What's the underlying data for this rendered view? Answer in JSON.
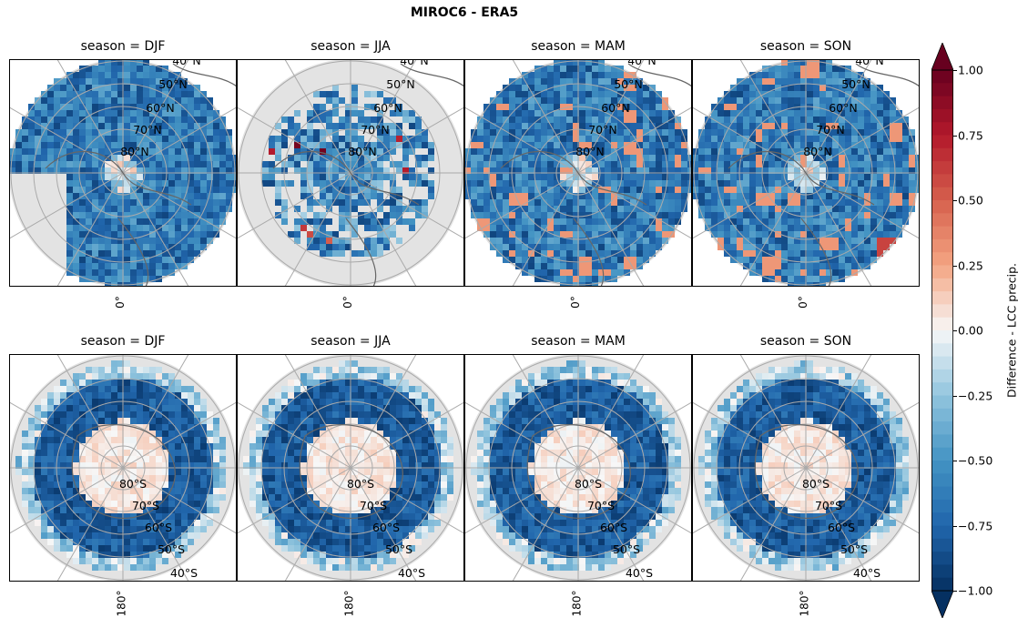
{
  "title": "MIROC6 - ERA5",
  "panels": [
    {
      "title": "season = DJF",
      "hemisphere": "north",
      "pattern": "djf_n"
    },
    {
      "title": "season = JJA",
      "hemisphere": "north",
      "pattern": "jja_n"
    },
    {
      "title": "season = MAM",
      "hemisphere": "north",
      "pattern": "mam_n"
    },
    {
      "title": "season = SON",
      "hemisphere": "north",
      "pattern": "son_n"
    },
    {
      "title": "season = DJF",
      "hemisphere": "south",
      "pattern": "djf_s"
    },
    {
      "title": "season = JJA",
      "hemisphere": "south",
      "pattern": "jja_s"
    },
    {
      "title": "season = MAM",
      "hemisphere": "south",
      "pattern": "mam_s"
    },
    {
      "title": "season = SON",
      "hemisphere": "south",
      "pattern": "son_s"
    }
  ],
  "north_lat_labels": [
    "40°N",
    "50°N",
    "60°N",
    "70°N",
    "80°N"
  ],
  "south_lat_labels": [
    "80°S",
    "70°S",
    "60°S",
    "50°S",
    "40°S"
  ],
  "north_lon_label": "0°",
  "south_lon_label": "180°",
  "colorbar": {
    "label": "Difference - LCC precip.",
    "min": -1.0,
    "max": 1.0,
    "levels": 40,
    "ticks": [
      "1.00",
      "0.75",
      "0.50",
      "0.25",
      "0.00",
      "−0.25",
      "−0.50",
      "−0.75",
      "−1.00"
    ],
    "tick_values": [
      1.0,
      0.75,
      0.5,
      0.25,
      0.0,
      -0.25,
      -0.5,
      -0.75,
      -1.0
    ]
  },
  "colors": {
    "grid": "#aaaaaa",
    "coast": "#666666",
    "nodata": "#e3e3e3",
    "neg": "#053061",
    "pos": "#67001f",
    "mid": "#f7f7f7"
  }
}
